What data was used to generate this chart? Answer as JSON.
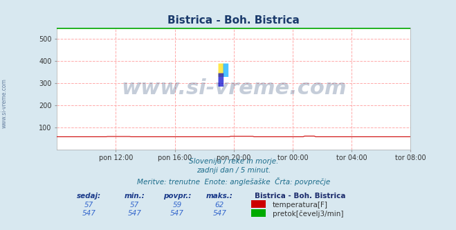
{
  "title": "Bistrica - Boh. Bistrica",
  "title_color": "#1a3a6b",
  "bg_color": "#d8e8f0",
  "plot_bg_color": "#ffffff",
  "grid_color_h": "#ff9999",
  "grid_color_v": "#ffaaaa",
  "ylim": [
    0,
    550
  ],
  "yticks": [
    100,
    200,
    300,
    400,
    500
  ],
  "xlabel_ticks": [
    "pon 12:00",
    "pon 16:00",
    "pon 20:00",
    "tor 00:00",
    "tor 04:00",
    "tor 08:00"
  ],
  "n_points": 288,
  "temp_min": 57,
  "temp_max": 62,
  "temp_avg": 59,
  "temp_color": "#cc0000",
  "flow_value": 547,
  "flow_color": "#00aa00",
  "watermark": "www.si-vreme.com",
  "watermark_color": "#1a3a6b",
  "watermark_alpha": 0.25,
  "subtitle1": "Slovenija / reke in morje.",
  "subtitle2": "zadnji dan / 5 minut.",
  "subtitle3": "Meritve: trenutne  Enote: anglešaške  Črta: povprečje",
  "subtitle_color": "#1a6b8a",
  "table_header_color": "#1a3a8a",
  "table_value_color": "#3366cc",
  "table_bold_color": "#1a2a6b",
  "side_label": "www.si-vreme.com",
  "side_label_color": "#1a3a6b"
}
